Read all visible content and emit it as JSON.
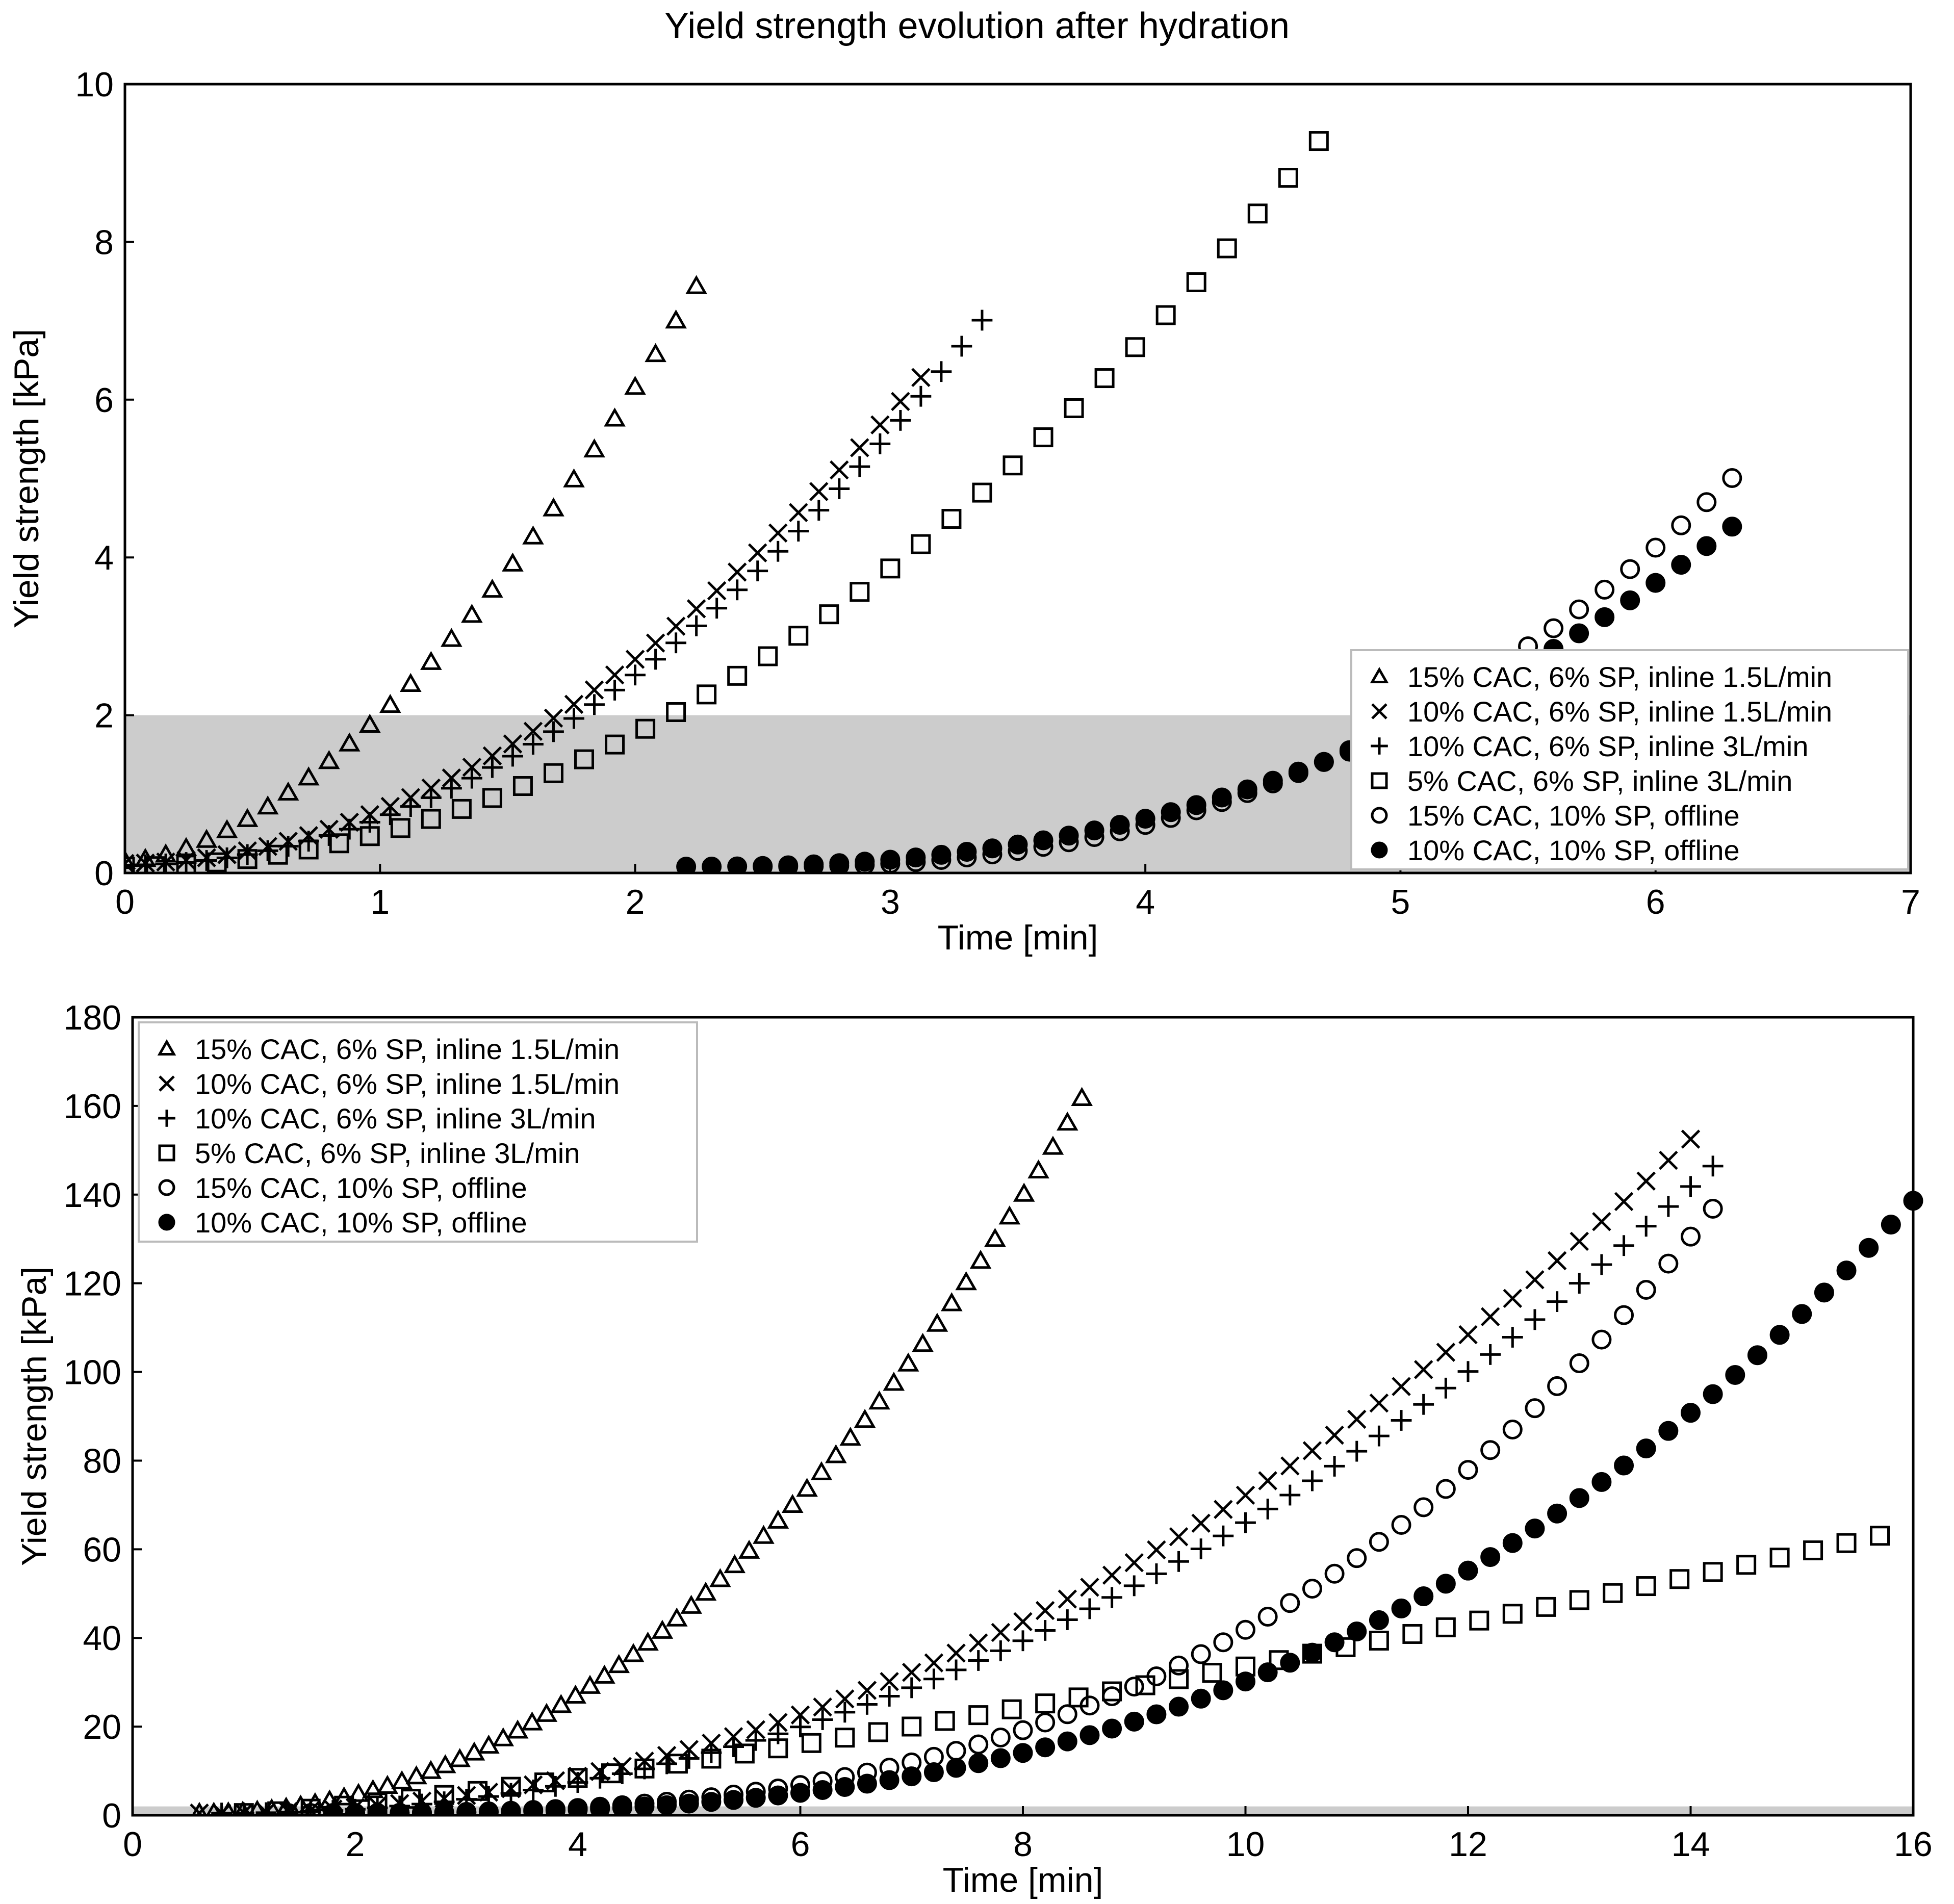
{
  "figure": {
    "title": "Yield strength evolution after hydration"
  },
  "chart_data": [
    {
      "type": "scatter",
      "title": "Yield strength evolution after hydration",
      "xlabel": "Time [min]",
      "ylabel": "Yield strength [kPa]",
      "xlim": [
        0,
        7
      ],
      "ylim": [
        0,
        10
      ],
      "xticks": [
        0,
        1,
        2,
        3,
        4,
        5,
        6,
        7
      ],
      "yticks": [
        0,
        2,
        4,
        6,
        8,
        10
      ],
      "xtick_labels": [
        "0",
        "1",
        "2",
        "3",
        "4",
        "5",
        "6",
        "7"
      ],
      "ytick_labels": [
        "0",
        "2",
        "4",
        "6",
        "8",
        "10"
      ],
      "shaded_band": {
        "y_from": 0,
        "y_to": 2,
        "color": "#cccccc"
      },
      "legend_position": "lower-right",
      "series": [
        {
          "name": "15% CAC, 6% SP, inline 1.5L/min",
          "marker": "triangle",
          "curve": {
            "t0": 0.0,
            "y0": 0.15,
            "a": 1.85,
            "p": 1.7,
            "x_end": 2.3,
            "step": 0.08
          }
        },
        {
          "name": "10% CAC, 6% SP, inline 1.5L/min",
          "marker": "x",
          "curve": {
            "t0": 0.0,
            "y0": 0.12,
            "a": 0.67,
            "p": 1.95,
            "x_end": 3.15,
            "step": 0.08
          }
        },
        {
          "name": "10% CAC, 6% SP, inline 3L/min",
          "marker": "plus",
          "curve": {
            "t0": 0.0,
            "y0": 0.1,
            "a": 0.59,
            "p": 2.03,
            "x_end": 3.4,
            "step": 0.08
          }
        },
        {
          "name": "5% CAC, 6% SP, inline 3L/min",
          "marker": "square",
          "curve": {
            "t0": 0.0,
            "y0": 0.08,
            "a": 0.42,
            "p": 2.0,
            "x_end": 4.7,
            "step": 0.12
          }
        },
        {
          "name": "15% CAC, 10% SP, offline",
          "marker": "circle-open",
          "curve": {
            "t0": 2.5,
            "y0": 0.08,
            "a": 0.2,
            "p": 2.4,
            "x_end": 6.3,
            "step": 0.1
          }
        },
        {
          "name": "10% CAC, 10% SP, offline",
          "marker": "circle-filled",
          "curve": {
            "t0": 2.2,
            "y0": 0.08,
            "a": 0.15,
            "p": 2.38,
            "x_end": 6.3,
            "step": 0.1
          }
        }
      ]
    },
    {
      "type": "scatter",
      "title": "",
      "xlabel": "Time [min]",
      "ylabel": "Yield strength [kPa]",
      "xlim": [
        0,
        16
      ],
      "ylim": [
        0,
        180
      ],
      "xticks": [
        0,
        2,
        4,
        6,
        8,
        10,
        12,
        14,
        16
      ],
      "yticks": [
        0,
        20,
        40,
        60,
        80,
        100,
        120,
        140,
        160,
        180
      ],
      "xtick_labels": [
        "0",
        "2",
        "4",
        "6",
        "8",
        "10",
        "12",
        "14",
        "16"
      ],
      "ytick_labels": [
        "0",
        "20",
        "40",
        "60",
        "80",
        "100",
        "120",
        "140",
        "160",
        "180"
      ],
      "shaded_band": {
        "y_from": 0,
        "y_to": 2,
        "color": "#cccccc"
      },
      "legend_position": "upper-left",
      "series": [
        {
          "name": "15% CAC, 6% SP, inline 1.5L/min",
          "marker": "triangle",
          "curve": {
            "t0": 0.6,
            "y0": 0.5,
            "a": 2.0,
            "p": 2.12,
            "x_end": 8.6,
            "step": 0.13
          }
        },
        {
          "name": "10% CAC, 6% SP, inline 1.5L/min",
          "marker": "x",
          "curve": {
            "t0": 0.6,
            "y0": 0.5,
            "a": 0.62,
            "p": 2.12,
            "x_end": 14.0,
            "step": 0.2
          }
        },
        {
          "name": "10% CAC, 6% SP, inline 3L/min",
          "marker": "plus",
          "curve": {
            "t0": 0.8,
            "y0": 0.5,
            "a": 0.58,
            "p": 2.13,
            "x_end": 14.3,
            "step": 0.2
          }
        },
        {
          "name": "5% CAC, 6% SP, inline 3L/min",
          "marker": "square",
          "curve": {
            "t0": 1.0,
            "y0": 0.5,
            "a": 1.9,
            "p": 1.3,
            "x_end": 16.0,
            "step": 0.3
          }
        },
        {
          "name": "15% CAC, 10% SP, offline",
          "marker": "circle-open",
          "curve": {
            "t0": 1.4,
            "y0": 0.5,
            "a": 0.065,
            "p": 3.0,
            "x_end": 14.2,
            "step": 0.2
          }
        },
        {
          "name": "10% CAC, 10% SP, offline",
          "marker": "circle-filled",
          "curve": {
            "t0": 1.8,
            "y0": 0.5,
            "a": 0.082,
            "p": 2.8,
            "x_end": 16.0,
            "step": 0.2
          }
        }
      ]
    }
  ]
}
